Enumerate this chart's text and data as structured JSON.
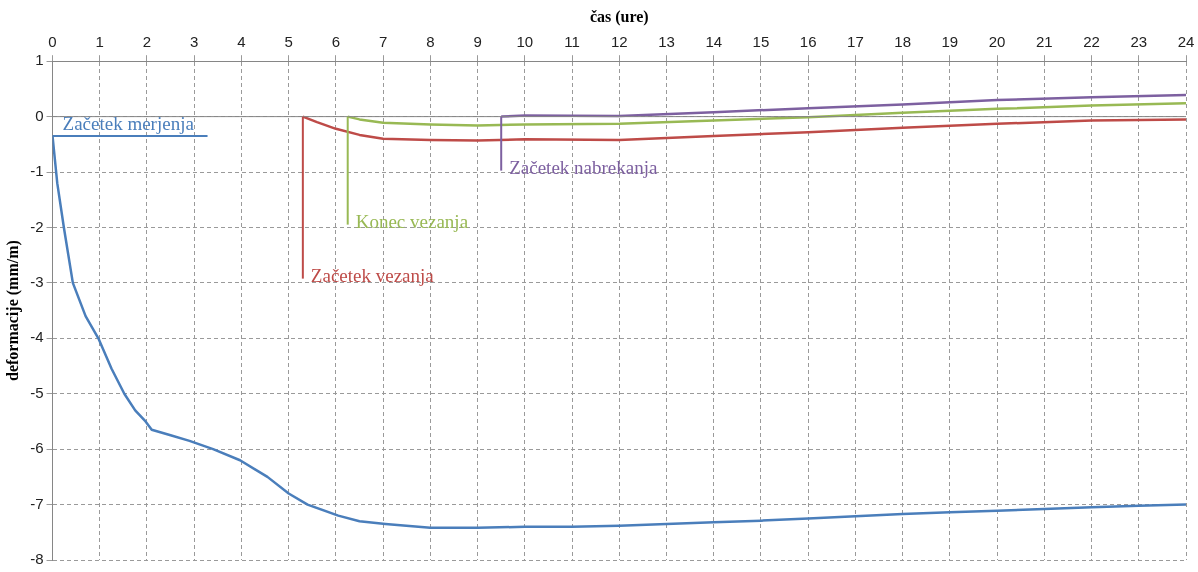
{
  "chart_data": {
    "type": "line",
    "xlabel": "čas (ure)",
    "ylabel": "deformacije (mm/m)",
    "xlim": [
      0,
      24
    ],
    "xticks": [
      0,
      1,
      2,
      3,
      4,
      5,
      6,
      7,
      8,
      9,
      10,
      11,
      12,
      13,
      14,
      15,
      16,
      17,
      18,
      19,
      20,
      21,
      22,
      23,
      24
    ],
    "ylim": [
      -8,
      1
    ],
    "yticks": [
      -8,
      -7,
      -6,
      -5,
      -4,
      -3,
      -2,
      -1,
      0,
      1
    ],
    "grid": true,
    "marker": "none",
    "line_style": "solid",
    "series": [
      {
        "color": "#4a7ebb",
        "x": [
          0,
          0.1,
          0.24,
          0.43,
          0.7,
          0.97,
          1.25,
          1.52,
          1.75,
          1.97,
          2.1,
          2.5,
          2.9,
          3.4,
          3.97,
          4.55,
          5.0,
          5.4,
          6.05,
          6.5,
          7.05,
          8,
          9,
          10,
          11,
          12,
          13,
          14,
          15,
          16,
          17,
          18,
          19,
          20,
          21,
          22,
          23,
          24
        ],
        "values": [
          -0.35,
          -1.2,
          -2,
          -3,
          -3.6,
          -4,
          -4.55,
          -5,
          -5.3,
          -5.5,
          -5.65,
          -5.75,
          -5.85,
          -6,
          -6.2,
          -6.5,
          -6.8,
          -7,
          -7.2,
          -7.3,
          -7.35,
          -7.42,
          -7.42,
          -7.4,
          -7.4,
          -7.38,
          -7.35,
          -7.32,
          -7.29,
          -7.25,
          -7.21,
          -7.17,
          -7.14,
          -7.11,
          -7.08,
          -7.05,
          -7.02,
          -7.0
        ]
      },
      {
        "color": "#be4b48",
        "x": [
          5.3,
          5.6,
          6,
          6.5,
          7,
          8,
          9,
          10,
          12,
          14,
          16,
          18,
          20,
          22,
          24
        ],
        "values": [
          0,
          -0.1,
          -0.22,
          -0.33,
          -0.4,
          -0.42,
          -0.43,
          -0.41,
          -0.42,
          -0.35,
          -0.28,
          -0.2,
          -0.13,
          -0.07,
          -0.05
        ]
      },
      {
        "color": "#98b954",
        "x": [
          6.25,
          6.5,
          7,
          8,
          9,
          10,
          12,
          14,
          16,
          18,
          20,
          22,
          24
        ],
        "values": [
          0,
          -0.05,
          -0.11,
          -0.14,
          -0.16,
          -0.14,
          -0.13,
          -0.07,
          -0.01,
          0.07,
          0.14,
          0.2,
          0.24
        ]
      },
      {
        "color": "#7d60a0",
        "x": [
          9.5,
          10,
          12,
          14,
          16,
          18,
          20,
          22,
          24
        ],
        "values": [
          0,
          0.02,
          0.01,
          0.08,
          0.15,
          0.22,
          0.3,
          0.35,
          0.39
        ]
      }
    ],
    "ref_lines": [
      {
        "axis": "y",
        "value": 0,
        "color": "#868686"
      }
    ],
    "annotations": [
      {
        "text": "Začetek merjenja",
        "x": 0,
        "y": -0.35
      },
      {
        "text": "Začetek vezanja",
        "x": 5.3,
        "y": 0
      },
      {
        "text": "Konec vezanja",
        "x": 6.25,
        "y": 0
      },
      {
        "text": "Začetek nabrekanja",
        "x": 9.5,
        "y": 0
      }
    ]
  }
}
